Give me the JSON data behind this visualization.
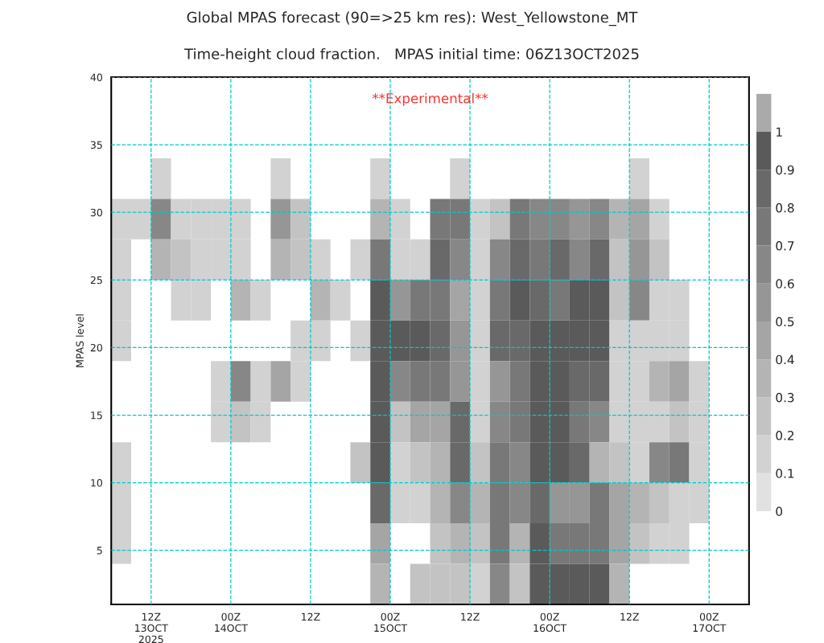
{
  "chart_data": {
    "type": "heatmap",
    "title": "Global MPAS forecast (90=>25 km res): West_Yellowstone_MT",
    "subtitle": "Time-height cloud fraction.   MPAS initial time: 06Z13OCT2025",
    "ylabel": "MPAS level",
    "annotations": [
      "**Experimental**"
    ],
    "x": [
      "2025-10-13T07:30",
      "2025-10-13T10:30",
      "2025-10-13T13:30",
      "2025-10-13T16:30",
      "2025-10-13T19:30",
      "2025-10-13T22:30",
      "2025-10-14T01:30",
      "2025-10-14T04:30",
      "2025-10-14T07:30",
      "2025-10-14T10:30",
      "2025-10-14T13:30",
      "2025-10-14T16:30",
      "2025-10-14T19:30",
      "2025-10-14T22:30",
      "2025-10-15T01:30",
      "2025-10-15T04:30",
      "2025-10-15T07:30",
      "2025-10-15T10:30",
      "2025-10-15T13:30",
      "2025-10-15T16:30",
      "2025-10-15T19:30",
      "2025-10-15T22:30",
      "2025-10-16T01:30",
      "2025-10-16T04:30",
      "2025-10-16T07:30",
      "2025-10-16T10:30",
      "2025-10-16T13:30",
      "2025-10-16T16:30",
      "2025-10-16T19:30",
      "2025-10-16T22:30",
      "2025-10-17T01:30",
      "2025-10-17T04:30"
    ],
    "y": [
      32.5,
      29.5,
      26.5,
      23.5,
      20.5,
      17.5,
      14.5,
      11.5,
      8.5,
      5.5,
      2.5
    ],
    "cells": [
      [
        null,
        null,
        0.15,
        null,
        null,
        null,
        null,
        null,
        0.15,
        null,
        null,
        null,
        null,
        0.15,
        null,
        null,
        null,
        0.15,
        null,
        null,
        null,
        null,
        null,
        null,
        null,
        null,
        0.15,
        null,
        null,
        null,
        null,
        null
      ],
      [
        0.15,
        0.15,
        0.65,
        0.15,
        0.15,
        0.15,
        0.15,
        null,
        0.55,
        0.25,
        null,
        null,
        null,
        0.35,
        0.15,
        null,
        0.75,
        0.75,
        0.15,
        0.25,
        0.75,
        0.65,
        0.65,
        0.55,
        0.65,
        0.35,
        0.45,
        0.15,
        null,
        null,
        null,
        null
      ],
      [
        0.15,
        null,
        0.35,
        0.25,
        0.15,
        0.15,
        0.15,
        null,
        0.35,
        0.25,
        0.15,
        null,
        0.15,
        0.75,
        0.15,
        0.15,
        0.85,
        0.65,
        0.15,
        0.65,
        0.85,
        0.75,
        0.85,
        0.65,
        0.85,
        0.25,
        0.55,
        0.25,
        null,
        null,
        null,
        null
      ],
      [
        0.15,
        null,
        null,
        0.15,
        0.15,
        null,
        0.35,
        0.15,
        null,
        null,
        0.35,
        0.15,
        null,
        0.95,
        0.55,
        0.75,
        0.75,
        0.45,
        0.15,
        0.75,
        0.95,
        0.85,
        0.75,
        0.95,
        0.95,
        0.25,
        0.65,
        0.15,
        0.15,
        null,
        null,
        null
      ],
      [
        0.15,
        null,
        null,
        null,
        null,
        null,
        null,
        null,
        null,
        0.15,
        0.15,
        null,
        0.15,
        0.95,
        0.95,
        0.95,
        0.85,
        0.55,
        0.15,
        0.85,
        0.85,
        0.95,
        0.95,
        0.95,
        0.95,
        0.15,
        0.15,
        0.15,
        0.15,
        null,
        null,
        null
      ],
      [
        null,
        null,
        null,
        null,
        null,
        0.15,
        0.65,
        0.15,
        0.45,
        0.15,
        null,
        null,
        null,
        0.95,
        0.65,
        0.75,
        0.75,
        0.55,
        0.15,
        0.55,
        0.75,
        0.95,
        0.95,
        0.85,
        0.85,
        0.15,
        0.15,
        0.35,
        0.45,
        0.15,
        null,
        null
      ],
      [
        null,
        null,
        null,
        null,
        null,
        0.15,
        0.25,
        0.15,
        null,
        null,
        null,
        null,
        null,
        0.95,
        0.25,
        0.45,
        0.45,
        0.85,
        0.15,
        0.65,
        0.75,
        0.95,
        0.95,
        0.75,
        0.65,
        0.15,
        0.15,
        0.15,
        0.25,
        0.15,
        null,
        null
      ],
      [
        0.15,
        null,
        null,
        null,
        null,
        null,
        null,
        null,
        null,
        null,
        null,
        null,
        0.25,
        0.95,
        0.15,
        0.25,
        0.35,
        0.85,
        0.25,
        0.75,
        0.65,
        0.95,
        0.95,
        0.85,
        0.35,
        0.25,
        0.15,
        0.65,
        0.75,
        0.15,
        null,
        null
      ],
      [
        0.15,
        null,
        null,
        null,
        null,
        null,
        null,
        null,
        null,
        null,
        null,
        null,
        null,
        0.85,
        0.15,
        0.15,
        0.35,
        0.65,
        0.35,
        0.75,
        0.65,
        0.85,
        0.55,
        0.55,
        0.75,
        0.45,
        0.35,
        0.25,
        0.15,
        0.15,
        null,
        null
      ],
      [
        0.15,
        null,
        null,
        null,
        null,
        null,
        null,
        null,
        null,
        null,
        null,
        null,
        null,
        0.45,
        null,
        null,
        0.25,
        0.35,
        0.25,
        0.75,
        0.35,
        0.95,
        0.75,
        0.75,
        0.75,
        0.45,
        0.25,
        0.15,
        0.15,
        null,
        null,
        null
      ],
      [
        null,
        null,
        null,
        null,
        null,
        null,
        null,
        null,
        null,
        null,
        null,
        null,
        null,
        0.35,
        null,
        0.25,
        0.25,
        0.25,
        0.15,
        0.65,
        0.25,
        0.95,
        0.95,
        0.95,
        0.95,
        0.35,
        null,
        null,
        null,
        null,
        null,
        null
      ]
    ],
    "colors": [
      "#e1e1e1",
      "#d2d2d2",
      "#c3c3c3",
      "#b4b4b4",
      "#a5a5a5",
      "#969696",
      "#878787",
      "#787878",
      "#696969",
      "#5a5a5a",
      "#aaaaaa"
    ],
    "clim": [
      0,
      1
    ],
    "cticks": [
      0,
      0.1,
      0.2,
      0.3,
      0.4,
      0.5,
      0.6,
      0.7,
      0.8,
      0.9,
      1
    ],
    "xlim": [
      "2025-10-13T06:00",
      "2025-10-17T06:00"
    ],
    "xticks": [
      {
        "value": "2025-10-13T12:00",
        "label": "12Z\n13OCT\n2025"
      },
      {
        "value": "2025-10-14T00:00",
        "label": "00Z\n14OCT"
      },
      {
        "value": "2025-10-14T12:00",
        "label": "12Z"
      },
      {
        "value": "2025-10-15T00:00",
        "label": "00Z\n15OCT"
      },
      {
        "value": "2025-10-15T12:00",
        "label": "12Z"
      },
      {
        "value": "2025-10-16T00:00",
        "label": "00Z\n16OCT"
      },
      {
        "value": "2025-10-16T12:00",
        "label": "12Z"
      },
      {
        "value": "2025-10-17T00:00",
        "label": "00Z\n17OCT"
      }
    ],
    "ylim": [
      1,
      40
    ],
    "yticks": [
      5,
      10,
      15,
      20,
      25,
      30,
      35,
      40
    ],
    "grid": true
  }
}
